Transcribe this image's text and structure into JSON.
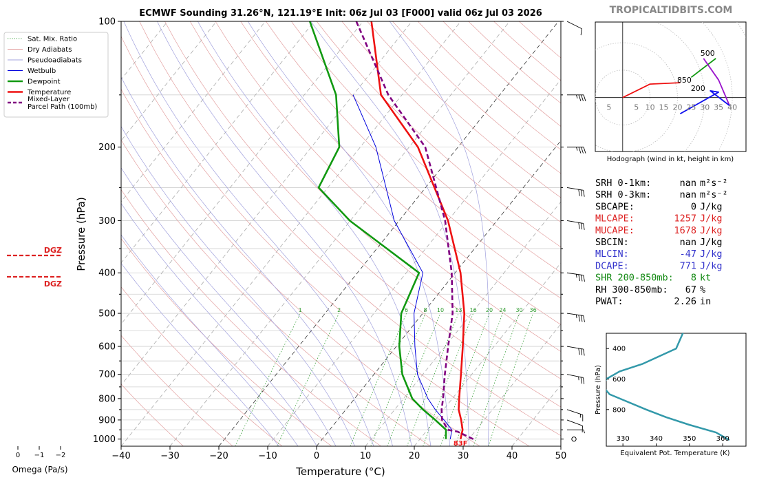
{
  "title": "ECMWF Sounding 31.26°N, 121.19°E Init: 06z Jul 03 [F000] valid 06z Jul 03 2026",
  "watermark": "TROPICALTIDBITS.COM",
  "colors": {
    "temperature": "#ee1111",
    "dewpoint": "#119911",
    "wetbulb": "#0000dd",
    "parcel": "#800080",
    "dry_adiabat": "#e3a0a0",
    "pseudo_adiabat": "#a0a0dd",
    "mixing_ratio": "#2e9b2e",
    "isotherm": "#aaaaaa",
    "hodo_low": "#ee1111",
    "hodo_mid": "#119911",
    "hodo_upper": "#9911cc",
    "hodo_top": "#1111ee",
    "theta_e": "#3399aa",
    "cape_red": "#dd2222",
    "cin_blue": "#3333cc",
    "shear_green": "#118811"
  },
  "legend": [
    {
      "label": "Sat. Mix. Ratio",
      "style": "dotted",
      "color": "#2e9b2e"
    },
    {
      "label": "Dry Adiabats",
      "style": "thin",
      "color": "#e3a0a0"
    },
    {
      "label": "Pseudoadiabats",
      "style": "thin",
      "color": "#a0a0dd"
    },
    {
      "label": "Wetbulb",
      "style": "thin",
      "color": "#0000dd"
    },
    {
      "label": "Dewpoint",
      "style": "thick",
      "color": "#119911"
    },
    {
      "label": "Temperature",
      "style": "thick",
      "color": "#ee1111"
    },
    {
      "label": "Mixed-Layer Parcel Path (100mb)",
      "label_lines": [
        "Mixed-Layer",
        "Parcel Path (100mb)"
      ],
      "style": "dashed",
      "color": "#800080"
    }
  ],
  "chart_data": [
    {
      "id": "skewt",
      "type": "line",
      "xlabel": "Temperature (°C)",
      "ylabel": "Pressure (hPa)",
      "xlim": [
        -40,
        50
      ],
      "ylim": [
        1040,
        100
      ],
      "y_scale": "log",
      "x_ticks": [
        -40,
        -30,
        -20,
        -10,
        0,
        10,
        20,
        30,
        40,
        50
      ],
      "x_tick_labels": [
        "−40",
        "−30",
        "−20",
        "−10",
        "0",
        "10",
        "20",
        "30",
        "40",
        "50"
      ],
      "y_ticks": [
        100,
        200,
        300,
        400,
        500,
        600,
        700,
        800,
        900,
        1000
      ],
      "grid": true,
      "surface_temp_label": "83F",
      "mixing_ratio_labels": [
        "1",
        "2",
        "6",
        "8",
        "10",
        "13",
        "16",
        "20",
        "24",
        "30",
        "36"
      ],
      "series": [
        {
          "name": "Temperature",
          "p": [
            1000,
            950,
            900,
            850,
            800,
            700,
            600,
            500,
            400,
            300,
            200,
            150,
            100
          ],
          "t": [
            28.3,
            27.2,
            25.3,
            23.1,
            21.4,
            17.8,
            13.6,
            8.5,
            1.1,
            -10.0,
            -28.2,
            -44.3,
            -58.3
          ]
        },
        {
          "name": "Dewpoint",
          "p": [
            1000,
            950,
            900,
            850,
            800,
            700,
            600,
            500,
            400,
            300,
            250,
            200,
            150,
            100
          ],
          "t": [
            25.3,
            23.8,
            20.0,
            15.8,
            11.8,
            5.8,
            0.6,
            -4.4,
            -7.4,
            -30.1,
            -41.9,
            -44.3,
            -53.5,
            -70.9
          ]
        },
        {
          "name": "Wetbulb",
          "p": [
            1000,
            950,
            900,
            850,
            800,
            700,
            600,
            500,
            400,
            300,
            200,
            150
          ],
          "t": [
            26.2,
            25.0,
            21.8,
            18.3,
            15.0,
            8.9,
            3.8,
            -1.8,
            -6.6,
            -21.0,
            -36.8,
            -50.0
          ]
        },
        {
          "name": "Mixed-Layer Parcel Path (100mb)",
          "p": [
            1000,
            960,
            950,
            900,
            850,
            800,
            700,
            600,
            500,
            400,
            300,
            200,
            150,
            100
          ],
          "t": [
            30.9,
            26.5,
            24.2,
            21.4,
            19.6,
            18.1,
            14.5,
            10.6,
            6.1,
            -0.7,
            -10.6,
            -26.7,
            -42.8,
            -61.4
          ]
        }
      ],
      "wind_barbs": [
        {
          "p": 1000,
          "calm": true
        },
        {
          "p": 950,
          "u": -5,
          "v": 0
        },
        {
          "p": 900,
          "u": -8,
          "v": 3
        },
        {
          "p": 850,
          "u": -15,
          "v": 5
        },
        {
          "p": 700,
          "u": -25,
          "v": 5
        },
        {
          "p": 600,
          "u": -30,
          "v": 5
        },
        {
          "p": 500,
          "u": -35,
          "v": 5
        },
        {
          "p": 400,
          "u": -35,
          "v": 5
        },
        {
          "p": 300,
          "u": -30,
          "v": 5
        },
        {
          "p": 250,
          "u": -30,
          "v": 5
        },
        {
          "p": 200,
          "u": -35,
          "v": 0
        },
        {
          "p": 150,
          "u": -35,
          "v": 0
        },
        {
          "p": 100,
          "u": -10,
          "v": 5
        }
      ]
    },
    {
      "id": "hodograph",
      "type": "line",
      "caption": "Hodograph (wind in kt, height in km)",
      "xlim": [
        -10,
        45
      ],
      "ylim": [
        -20,
        28
      ],
      "ring_labels": [
        "5",
        "5",
        "10",
        "15",
        "20",
        "25",
        "30",
        "35",
        "40"
      ],
      "ring_label_x": [
        -5,
        5,
        10,
        15,
        20,
        25,
        30,
        35,
        40
      ],
      "point_labels": [
        {
          "text": "850",
          "u": 22.5,
          "v": 5.5
        },
        {
          "text": "500",
          "u": 31,
          "v": 15.5
        },
        {
          "text": "200",
          "u": 27.5,
          "v": 2.5
        }
      ],
      "segments": [
        {
          "name": "low",
          "points": [
            [
              0,
              0
            ],
            [
              10,
              5
            ],
            [
              21,
              5.5
            ]
          ]
        },
        {
          "name": "mid",
          "points": [
            [
              25,
              7.5
            ],
            [
              34,
              14.5
            ]
          ]
        },
        {
          "name": "upper",
          "points": [
            [
              29.5,
              14.5
            ],
            [
              35,
              6.5
            ],
            [
              39,
              -3
            ]
          ]
        },
        {
          "name": "top",
          "points": [
            [
              39,
              -3
            ],
            [
              32,
              2.5
            ],
            [
              35,
              2
            ],
            [
              21,
              -6
            ]
          ]
        }
      ]
    },
    {
      "id": "omega",
      "type": "line",
      "xlabel": "Omega (Pa/s)",
      "x_ticks": [
        "0",
        "−1",
        "−2"
      ],
      "dgz_labels": [
        "DGZ",
        "DGZ"
      ]
    },
    {
      "id": "theta_e",
      "type": "line",
      "xlabel": "Equivalent Pot. Temperature (K)",
      "ylabel": "Pressure (hPa)",
      "xlim": [
        325,
        367
      ],
      "ylim": [
        1000,
        200
      ],
      "x_ticks": [
        330,
        340,
        350,
        360
      ],
      "y_ticks": [
        400,
        600,
        800
      ],
      "p": [
        1000,
        950,
        900,
        850,
        800,
        700,
        650,
        600,
        550,
        500,
        400,
        300,
        200
      ],
      "theta_e": [
        362,
        358,
        350,
        343,
        337,
        326,
        324,
        325,
        329,
        336,
        346,
        348,
        348
      ]
    }
  ],
  "stats": [
    {
      "label": "SRH 0-1km:",
      "value": "nan",
      "unit": "m²s⁻²",
      "color": "#000000"
    },
    {
      "label": "SRH 0-3km:",
      "value": "nan",
      "unit": "m²s⁻²",
      "color": "#000000"
    },
    {
      "label": "SBCAPE:",
      "value": "0",
      "unit": "J/kg",
      "color": "#000000"
    },
    {
      "label": "MLCAPE:",
      "value": "1257",
      "unit": "J/kg",
      "color": "#dd2222"
    },
    {
      "label": "MUCAPE:",
      "value": "1678",
      "unit": "J/kg",
      "color": "#dd2222"
    },
    {
      "label": "SBCIN:",
      "value": "nan",
      "unit": "J/kg",
      "color": "#000000"
    },
    {
      "label": "MLCIN:",
      "value": "-47",
      "unit": "J/kg",
      "color": "#3333cc"
    },
    {
      "label": "DCAPE:",
      "value": "771",
      "unit": "J/kg",
      "color": "#3333cc"
    },
    {
      "label": "SHR 200-850mb:",
      "value": "8",
      "unit": "kt",
      "color": "#118811"
    },
    {
      "label": "RH 300-850mb:",
      "value": "67",
      "unit": "%",
      "color": "#000000"
    },
    {
      "label": "PWAT:",
      "value": "2.26",
      "unit": "in",
      "color": "#000000"
    }
  ]
}
